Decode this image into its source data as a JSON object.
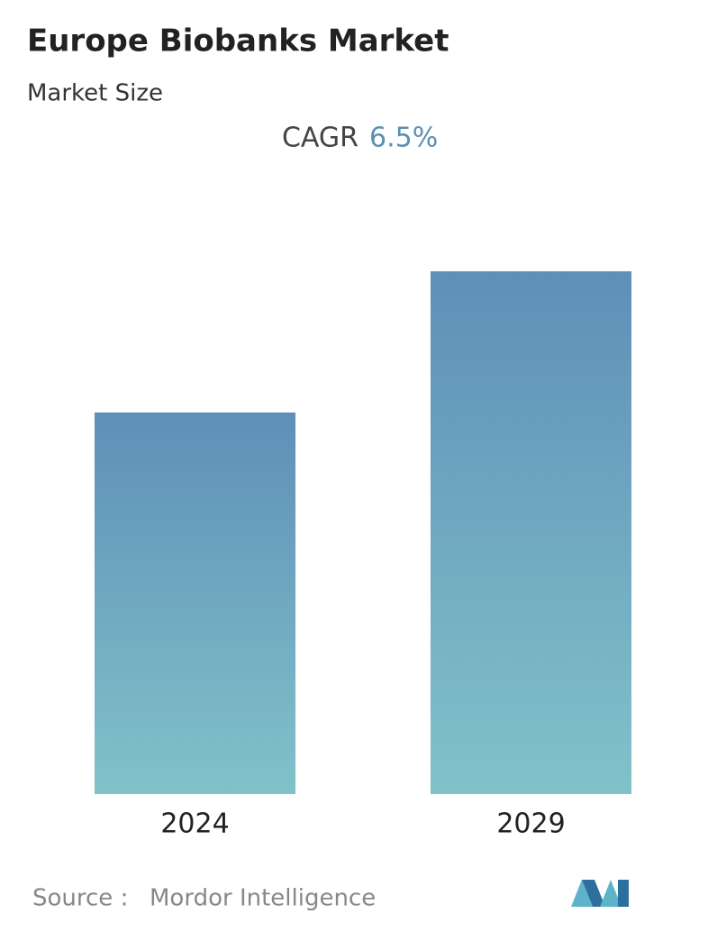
{
  "chart_data": {
    "type": "bar",
    "title": "Europe Biobanks Market",
    "subtitle": "Market Size",
    "cagr_label": "CAGR",
    "cagr_value": "6.5%",
    "categories": [
      "2024",
      "2029"
    ],
    "values": [
      73,
      100
    ],
    "ylim": [
      0,
      100
    ],
    "color_top": "#5f8fb8",
    "color_bottom": "#80c2c9",
    "source_label": "Source :",
    "source": "Mordor Intelligence"
  }
}
